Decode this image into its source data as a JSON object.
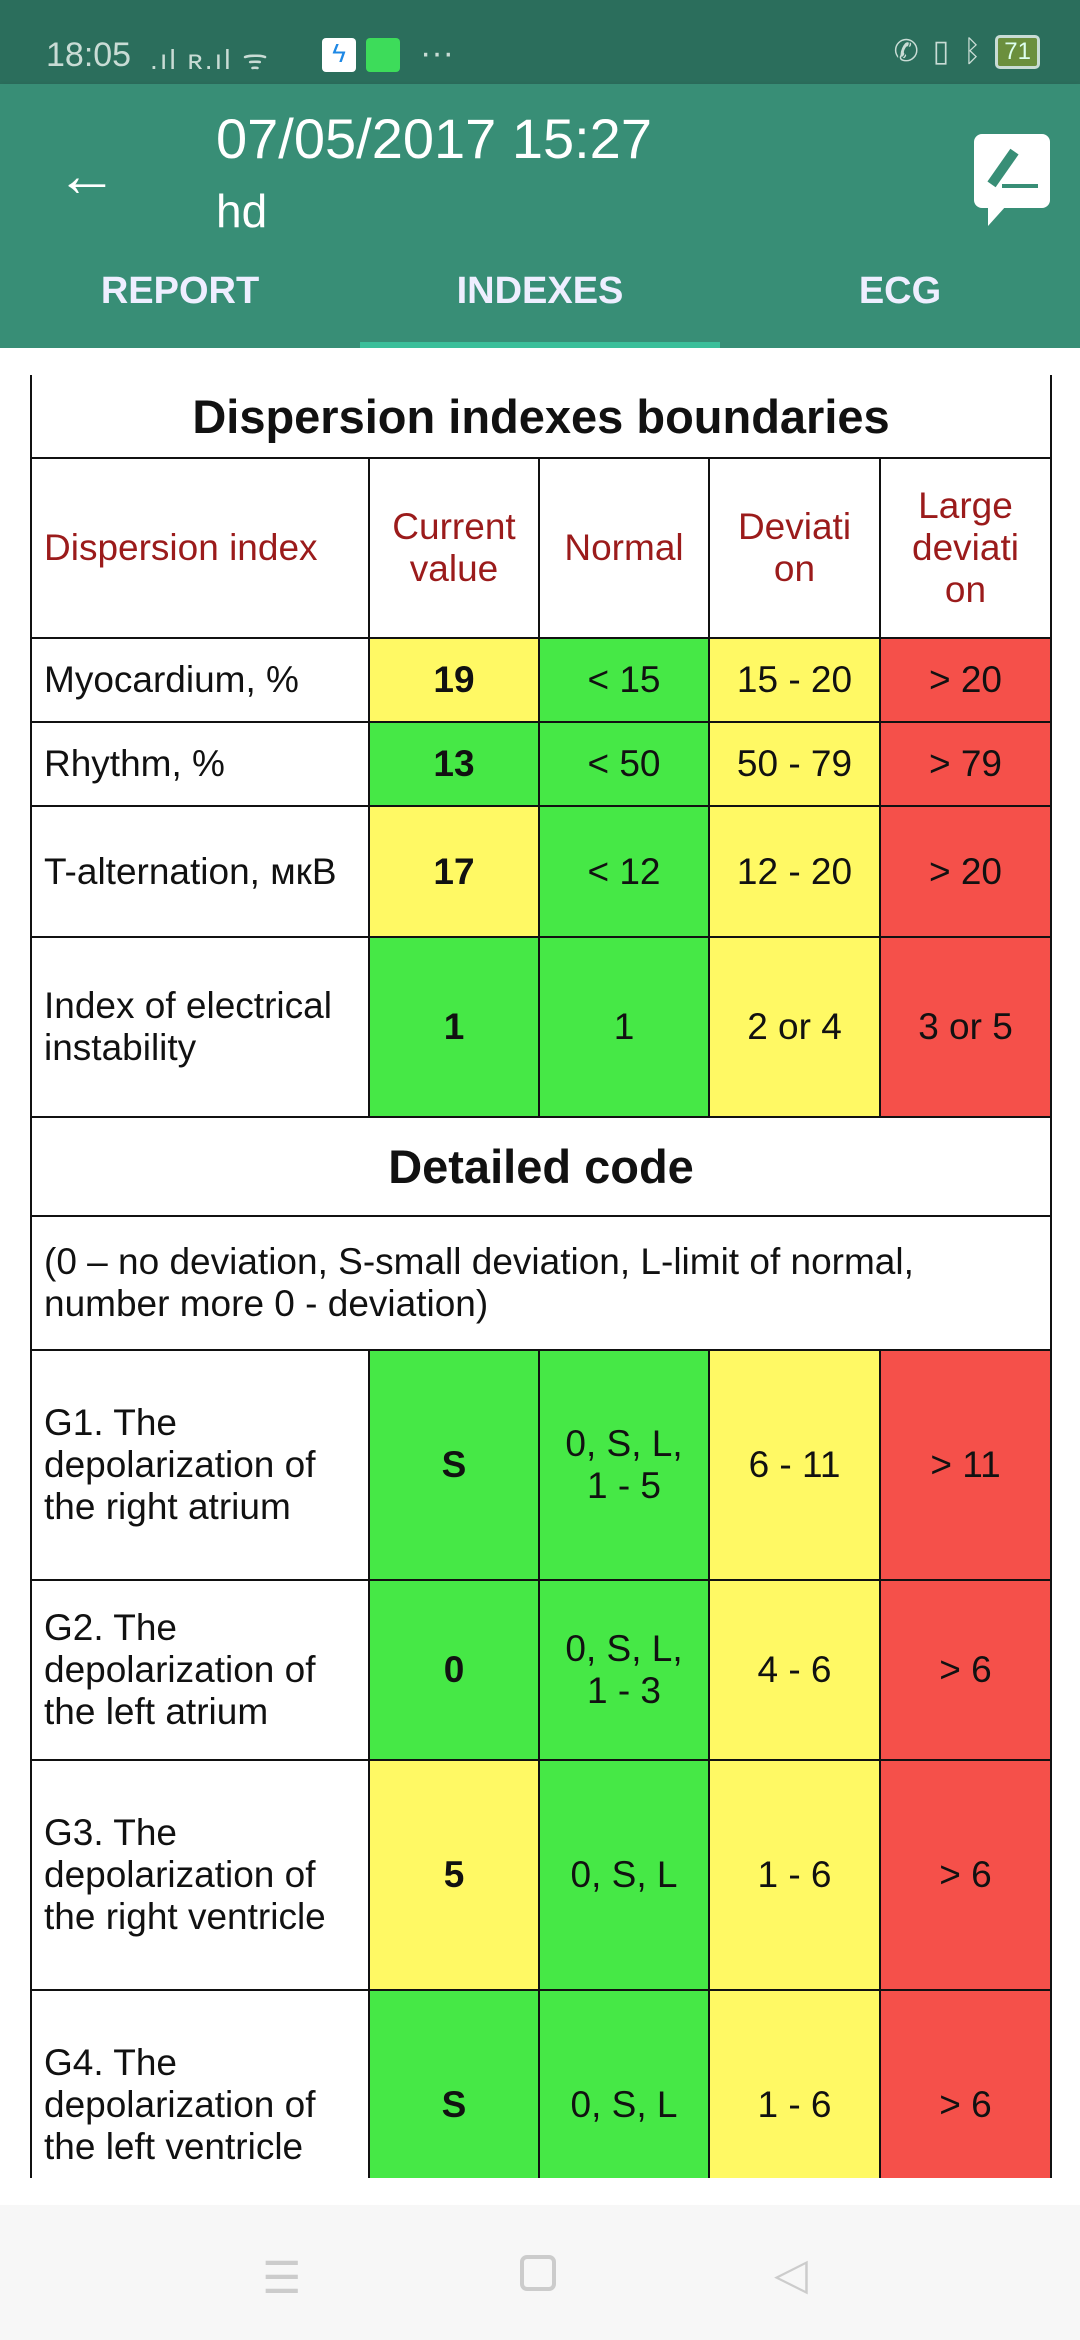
{
  "status": {
    "time": "18:05",
    "battery": "71"
  },
  "header": {
    "title": "07/05/2017 15:27",
    "subtitle": "hd"
  },
  "tabs": [
    {
      "label": "REPORT"
    },
    {
      "label": "INDEXES"
    },
    {
      "label": "ECG"
    }
  ],
  "table": {
    "title": "Dispersion indexes boundaries",
    "headers": [
      "Dispersion index",
      "Current value",
      "Normal",
      "Deviati on",
      "Large deviati on"
    ],
    "rows": [
      {
        "name": "Myocardium, %",
        "current": "19",
        "normal": "< 15",
        "deviation": "15 - 20",
        "large": "> 20"
      },
      {
        "name": "Rhythm, %",
        "current": "13",
        "normal": "< 50",
        "deviation": "50 - 79",
        "large": "> 79"
      },
      {
        "name": "T-alternation, мкВ",
        "current": "17",
        "normal": "< 12",
        "deviation": "12 - 20",
        "large": "> 20"
      },
      {
        "name": "Index of electrical instability",
        "current": "1",
        "normal": "1",
        "deviation": "2 or 4",
        "large": "3 or 5"
      }
    ],
    "detailed_title": "Detailed code",
    "detailed_note": "(0 – no deviation, S-small deviation, L-limit of normal, number more 0 - deviation)",
    "codes": [
      {
        "name": "G1. The depolarization of the right atrium",
        "current": "S",
        "normal": "0, S, L, 1 - 5",
        "deviation": "6 - 11",
        "large": "> 11"
      },
      {
        "name": "G2. The depolarization of the left atrium",
        "current": "0",
        "normal": "0, S, L, 1 - 3",
        "deviation": "4 - 6",
        "large": "> 6"
      },
      {
        "name": "G3. The depolarization of the right ventricle",
        "current": "5",
        "normal": "0, S, L",
        "deviation": "1 - 6",
        "large": "> 6"
      },
      {
        "name": "G4. The depolarization of the left ventricle",
        "current": "S",
        "normal": "0, S, L",
        "deviation": "1 - 6",
        "large": "> 6"
      }
    ]
  },
  "colors": {
    "normal": "#46e846",
    "deviation": "#fff964",
    "large": "#f5504a",
    "appbar": "#388e76"
  }
}
